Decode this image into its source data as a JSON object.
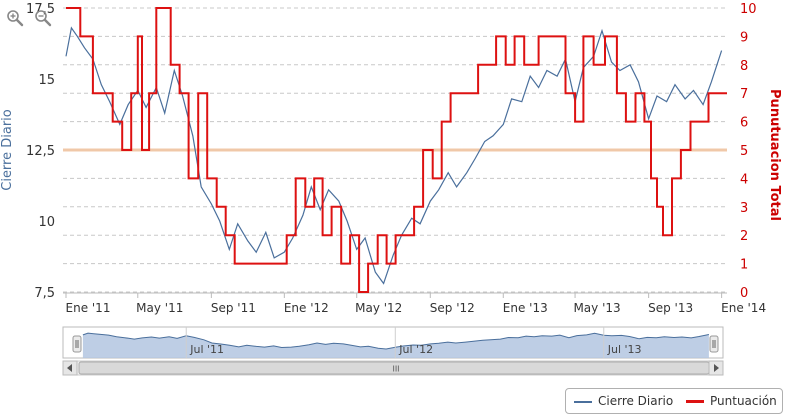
{
  "chart_data": {
    "type": "line",
    "x_tick_labels": [
      "Ene '11",
      "May '11",
      "Sep '11",
      "Ene '12",
      "May '12",
      "Sep '12",
      "Ene '13",
      "May '13",
      "Sep '13",
      "Ene '14"
    ],
    "left_axis": {
      "label": "Cierre Diario",
      "ticks": [
        "7,5",
        "10",
        "12,5",
        "15",
        "17,5"
      ],
      "range": [
        7.5,
        17.5
      ],
      "color": "#4a6f9c"
    },
    "right_axis": {
      "label": "Punutuacion Total",
      "ticks": [
        "0",
        "1",
        "2",
        "3",
        "4",
        "5",
        "6",
        "7",
        "8",
        "9",
        "10"
      ],
      "range": [
        0,
        10
      ],
      "color": "#cc0000"
    },
    "reference_line": {
      "value": 12.5,
      "axis": "left",
      "color": "#f0c8a8"
    },
    "grid": true,
    "series": [
      {
        "name": "Cierre Diario",
        "axis": "left",
        "color": "#4a6f9c",
        "points": [
          [
            "2011-01-01",
            15.8
          ],
          [
            "2011-01-10",
            16.8
          ],
          [
            "2011-01-20",
            16.5
          ],
          [
            "2011-02-01",
            16.1
          ],
          [
            "2011-02-15",
            15.7
          ],
          [
            "2011-03-01",
            14.8
          ],
          [
            "2011-03-15",
            14.2
          ],
          [
            "2011-04-01",
            13.4
          ],
          [
            "2011-04-15",
            14.1
          ],
          [
            "2011-05-01",
            14.6
          ],
          [
            "2011-05-15",
            14.0
          ],
          [
            "2011-06-01",
            14.7
          ],
          [
            "2011-06-15",
            13.8
          ],
          [
            "2011-07-01",
            15.3
          ],
          [
            "2011-07-15",
            14.4
          ],
          [
            "2011-08-01",
            13.0
          ],
          [
            "2011-08-15",
            11.2
          ],
          [
            "2011-09-01",
            10.6
          ],
          [
            "2011-09-15",
            10.0
          ],
          [
            "2011-10-01",
            9.0
          ],
          [
            "2011-10-15",
            9.9
          ],
          [
            "2011-11-01",
            9.3
          ],
          [
            "2011-11-15",
            8.9
          ],
          [
            "2011-12-01",
            9.6
          ],
          [
            "2011-12-15",
            8.7
          ],
          [
            "2012-01-01",
            8.9
          ],
          [
            "2012-01-15",
            9.4
          ],
          [
            "2012-02-01",
            10.2
          ],
          [
            "2012-02-15",
            11.2
          ],
          [
            "2012-03-01",
            10.4
          ],
          [
            "2012-03-15",
            11.1
          ],
          [
            "2012-04-01",
            10.7
          ],
          [
            "2012-04-15",
            10.0
          ],
          [
            "2012-05-01",
            9.0
          ],
          [
            "2012-05-15",
            9.4
          ],
          [
            "2012-06-01",
            8.2
          ],
          [
            "2012-06-15",
            7.8
          ],
          [
            "2012-07-01",
            8.8
          ],
          [
            "2012-07-15",
            9.5
          ],
          [
            "2012-08-01",
            10.1
          ],
          [
            "2012-08-15",
            9.9
          ],
          [
            "2012-09-01",
            10.7
          ],
          [
            "2012-09-15",
            11.1
          ],
          [
            "2012-10-01",
            11.7
          ],
          [
            "2012-10-15",
            11.2
          ],
          [
            "2012-11-01",
            11.7
          ],
          [
            "2012-11-15",
            12.2
          ],
          [
            "2012-12-01",
            12.8
          ],
          [
            "2012-12-15",
            13.0
          ],
          [
            "2013-01-01",
            13.4
          ],
          [
            "2013-01-15",
            14.3
          ],
          [
            "2013-02-01",
            14.2
          ],
          [
            "2013-02-15",
            15.1
          ],
          [
            "2013-03-01",
            14.7
          ],
          [
            "2013-03-15",
            15.3
          ],
          [
            "2013-04-01",
            15.1
          ],
          [
            "2013-04-15",
            15.7
          ],
          [
            "2013-05-01",
            14.2
          ],
          [
            "2013-05-15",
            15.4
          ],
          [
            "2013-06-01",
            15.8
          ],
          [
            "2013-06-15",
            16.7
          ],
          [
            "2013-07-01",
            15.6
          ],
          [
            "2013-07-15",
            15.3
          ],
          [
            "2013-08-01",
            15.5
          ],
          [
            "2013-08-15",
            14.9
          ],
          [
            "2013-09-01",
            13.6
          ],
          [
            "2013-09-15",
            14.4
          ],
          [
            "2013-10-01",
            14.2
          ],
          [
            "2013-10-15",
            14.8
          ],
          [
            "2013-11-01",
            14.3
          ],
          [
            "2013-11-15",
            14.6
          ],
          [
            "2013-12-01",
            14.1
          ],
          [
            "2013-12-15",
            14.9
          ],
          [
            "2014-01-01",
            16.0
          ]
        ]
      },
      {
        "name": "Puntuación",
        "axis": "right",
        "color": "#dd1111",
        "points": [
          [
            "2011-01-01",
            10
          ],
          [
            "2011-01-25",
            9
          ],
          [
            "2011-02-15",
            7
          ],
          [
            "2011-03-01",
            7
          ],
          [
            "2011-03-20",
            6
          ],
          [
            "2011-04-05",
            5
          ],
          [
            "2011-04-20",
            7
          ],
          [
            "2011-05-01",
            9
          ],
          [
            "2011-05-08",
            5
          ],
          [
            "2011-05-20",
            7
          ],
          [
            "2011-06-01",
            10
          ],
          [
            "2011-06-25",
            8
          ],
          [
            "2011-07-10",
            7
          ],
          [
            "2011-07-25",
            4
          ],
          [
            "2011-08-10",
            7
          ],
          [
            "2011-08-25",
            4
          ],
          [
            "2011-09-10",
            3
          ],
          [
            "2011-09-25",
            2
          ],
          [
            "2011-10-10",
            1
          ],
          [
            "2011-11-01",
            1
          ],
          [
            "2011-12-01",
            1
          ],
          [
            "2011-12-20",
            1
          ],
          [
            "2012-01-05",
            2
          ],
          [
            "2012-01-20",
            4
          ],
          [
            "2012-02-05",
            3
          ],
          [
            "2012-02-20",
            4
          ],
          [
            "2012-03-05",
            2
          ],
          [
            "2012-03-20",
            3
          ],
          [
            "2012-04-05",
            1
          ],
          [
            "2012-04-20",
            2
          ],
          [
            "2012-05-05",
            0
          ],
          [
            "2012-05-20",
            1
          ],
          [
            "2012-06-05",
            2
          ],
          [
            "2012-06-20",
            1
          ],
          [
            "2012-07-05",
            2
          ],
          [
            "2012-07-20",
            2
          ],
          [
            "2012-08-05",
            3
          ],
          [
            "2012-08-20",
            5
          ],
          [
            "2012-09-05",
            4
          ],
          [
            "2012-09-20",
            6
          ],
          [
            "2012-10-05",
            7
          ],
          [
            "2012-11-01",
            7
          ],
          [
            "2012-11-20",
            8
          ],
          [
            "2012-12-05",
            8
          ],
          [
            "2012-12-20",
            9
          ],
          [
            "2013-01-05",
            8
          ],
          [
            "2013-01-20",
            9
          ],
          [
            "2013-02-05",
            8
          ],
          [
            "2013-03-01",
            9
          ],
          [
            "2013-04-01",
            9
          ],
          [
            "2013-04-15",
            7
          ],
          [
            "2013-05-01",
            6
          ],
          [
            "2013-05-15",
            9
          ],
          [
            "2013-06-01",
            8
          ],
          [
            "2013-06-20",
            9
          ],
          [
            "2013-07-10",
            7
          ],
          [
            "2013-07-25",
            6
          ],
          [
            "2013-08-10",
            7
          ],
          [
            "2013-08-25",
            6
          ],
          [
            "2013-09-05",
            4
          ],
          [
            "2013-09-15",
            3
          ],
          [
            "2013-09-25",
            2
          ],
          [
            "2013-10-10",
            4
          ],
          [
            "2013-10-25",
            5
          ],
          [
            "2013-11-10",
            6
          ],
          [
            "2013-11-25",
            6
          ],
          [
            "2013-12-10",
            7
          ],
          [
            "2014-01-01",
            7
          ]
        ]
      }
    ],
    "navigator_labels": [
      "Jul '11",
      "Jul '12",
      "Jul '13"
    ],
    "legend": [
      "Cierre Diario",
      "Puntuación"
    ],
    "legend_position": "bottom-right"
  },
  "toolbar": {
    "zoom_in_icon": "zoom-in-icon",
    "zoom_out_icon": "zoom-out-icon"
  },
  "scrollbar": {
    "grip_glyph": "III"
  }
}
